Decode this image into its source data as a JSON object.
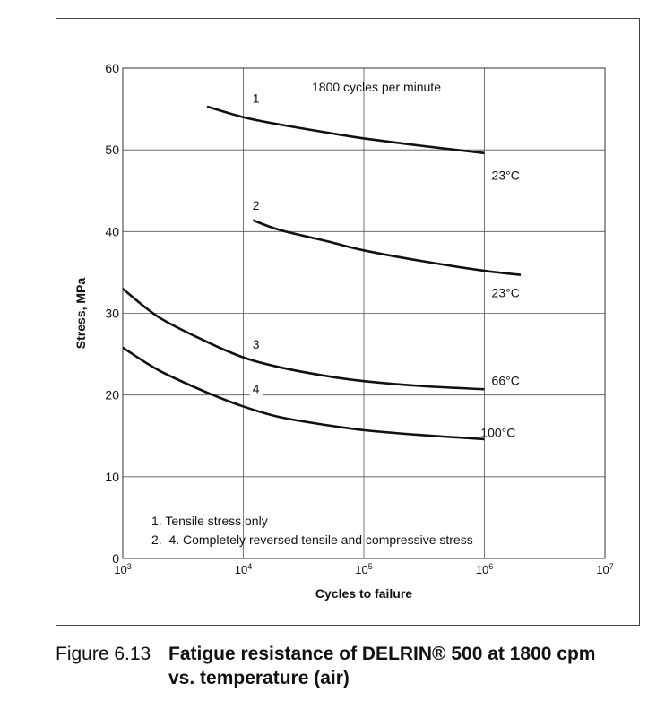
{
  "figure": {
    "number_label": "Figure 6.13",
    "caption_line1": "Fatigue resistance of DELRIN® 500 at 1800 cpm",
    "caption_line2": "vs. temperature (air)"
  },
  "chart_data": {
    "type": "line",
    "xscale": "log",
    "xlim": [
      1000,
      10000000
    ],
    "ylim": [
      0,
      60
    ],
    "xlabel": "Cycles to failure",
    "ylabel": "Stress, MPa",
    "x_ticks": [
      {
        "value": 1000,
        "base": "10",
        "exp": "3"
      },
      {
        "value": 10000,
        "base": "10",
        "exp": "4"
      },
      {
        "value": 100000,
        "base": "10",
        "exp": "5"
      },
      {
        "value": 1000000,
        "base": "10",
        "exp": "6"
      },
      {
        "value": 10000000,
        "base": "10",
        "exp": "7"
      }
    ],
    "y_ticks": [
      0,
      10,
      20,
      30,
      40,
      50,
      60
    ],
    "grid": true,
    "annotation_top": "1800 cycles per minute",
    "notes": [
      "1. Tensile stress only",
      "2.–4. Completely reversed tensile and compressive stress"
    ],
    "line_color": "#111111",
    "series": [
      {
        "name": "1",
        "temperature": "23°C",
        "x": [
          5000,
          10000,
          20000,
          50000,
          100000,
          300000,
          1000000
        ],
        "y": [
          55.3,
          54.0,
          53.1,
          52.1,
          51.4,
          50.5,
          49.6
        ]
      },
      {
        "name": "2",
        "temperature": "23°C",
        "x": [
          12000,
          20000,
          50000,
          100000,
          300000,
          1000000,
          2000000
        ],
        "y": [
          41.4,
          40.2,
          38.8,
          37.7,
          36.4,
          35.2,
          34.7
        ]
      },
      {
        "name": "3",
        "temperature": "66°C",
        "x": [
          1000,
          2000,
          5000,
          10000,
          20000,
          50000,
          100000,
          300000,
          1000000
        ],
        "y": [
          33.0,
          29.5,
          26.5,
          24.6,
          23.4,
          22.3,
          21.7,
          21.1,
          20.7
        ]
      },
      {
        "name": "4",
        "temperature": "100°C",
        "x": [
          1000,
          2000,
          5000,
          10000,
          20000,
          50000,
          100000,
          300000,
          1000000
        ],
        "y": [
          25.8,
          23.0,
          20.3,
          18.6,
          17.3,
          16.3,
          15.7,
          15.1,
          14.6
        ]
      }
    ]
  }
}
